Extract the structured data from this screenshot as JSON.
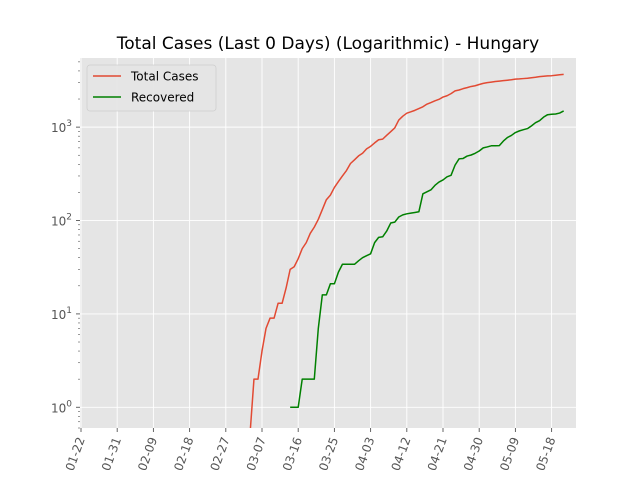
{
  "chart_data": {
    "type": "line",
    "title": "Total Cases (Last 0 Days) (Logarithmic) - Hungary",
    "xlabel": "",
    "ylabel": "",
    "yscale": "log",
    "ylim": [
      0.6,
      5500
    ],
    "x_tick_labels": [
      "01-22",
      "01-31",
      "02-09",
      "02-18",
      "02-27",
      "03-07",
      "03-16",
      "03-25",
      "04-03",
      "04-12",
      "04-21",
      "04-30",
      "05-09",
      "05-18"
    ],
    "y_ticks": [
      {
        "value": 1,
        "base": "10",
        "exp": "0"
      },
      {
        "value": 10,
        "base": "10",
        "exp": "1"
      },
      {
        "value": 100,
        "base": "10",
        "exp": "2"
      },
      {
        "value": 1000,
        "base": "10",
        "exp": "3"
      }
    ],
    "grid": true,
    "legend_position": "top-left",
    "series": [
      {
        "name": "Total Cases",
        "color": "#e24a33",
        "points": [
          [
            "03-04",
            0.5
          ],
          [
            "03-05",
            2
          ],
          [
            "03-06",
            2
          ],
          [
            "03-07",
            4
          ],
          [
            "03-08",
            7
          ],
          [
            "03-09",
            9
          ],
          [
            "03-10",
            9
          ],
          [
            "03-11",
            13
          ],
          [
            "03-12",
            13
          ],
          [
            "03-13",
            19
          ],
          [
            "03-14",
            30
          ],
          [
            "03-15",
            32
          ],
          [
            "03-16",
            39
          ],
          [
            "03-17",
            50
          ],
          [
            "03-18",
            58
          ],
          [
            "03-19",
            73
          ],
          [
            "03-20",
            85
          ],
          [
            "03-21",
            103
          ],
          [
            "03-22",
            131
          ],
          [
            "03-23",
            167
          ],
          [
            "03-24",
            187
          ],
          [
            "03-25",
            226
          ],
          [
            "03-26",
            261
          ],
          [
            "03-27",
            300
          ],
          [
            "03-28",
            343
          ],
          [
            "03-29",
            408
          ],
          [
            "03-30",
            447
          ],
          [
            "03-31",
            492
          ],
          [
            "04-01",
            525
          ],
          [
            "04-02",
            585
          ],
          [
            "04-03",
            623
          ],
          [
            "04-04",
            678
          ],
          [
            "04-05",
            733
          ],
          [
            "04-06",
            744
          ],
          [
            "04-07",
            817
          ],
          [
            "04-08",
            895
          ],
          [
            "04-09",
            980
          ],
          [
            "04-10",
            1190
          ],
          [
            "04-11",
            1310
          ],
          [
            "04-12",
            1410
          ],
          [
            "04-13",
            1458
          ],
          [
            "04-14",
            1512
          ],
          [
            "04-15",
            1579
          ],
          [
            "04-16",
            1652
          ],
          [
            "04-17",
            1763
          ],
          [
            "04-18",
            1834
          ],
          [
            "04-19",
            1916
          ],
          [
            "04-20",
            1984
          ],
          [
            "04-21",
            2098
          ],
          [
            "04-22",
            2168
          ],
          [
            "04-23",
            2284
          ],
          [
            "04-24",
            2443
          ],
          [
            "04-25",
            2500
          ],
          [
            "04-26",
            2583
          ],
          [
            "04-27",
            2649
          ],
          [
            "04-28",
            2727
          ],
          [
            "04-29",
            2775
          ],
          [
            "04-30",
            2863
          ],
          [
            "05-01",
            2942
          ],
          [
            "05-02",
            2998
          ],
          [
            "05-03",
            3035
          ],
          [
            "05-04",
            3078
          ],
          [
            "05-05",
            3111
          ],
          [
            "05-06",
            3150
          ],
          [
            "05-07",
            3178
          ],
          [
            "05-08",
            3213
          ],
          [
            "05-09",
            3263
          ],
          [
            "05-10",
            3284
          ],
          [
            "05-11",
            3313
          ],
          [
            "05-12",
            3341
          ],
          [
            "05-13",
            3380
          ],
          [
            "05-14",
            3417
          ],
          [
            "05-15",
            3473
          ],
          [
            "05-16",
            3509
          ],
          [
            "05-17",
            3535
          ],
          [
            "05-18",
            3556
          ],
          [
            "05-19",
            3598
          ],
          [
            "05-20",
            3636
          ],
          [
            "05-21",
            3678
          ]
        ]
      },
      {
        "name": "Recovered",
        "color": "#008000",
        "points": [
          [
            "03-14",
            1
          ],
          [
            "03-15",
            1
          ],
          [
            "03-16",
            1
          ],
          [
            "03-17",
            2
          ],
          [
            "03-18",
            2
          ],
          [
            "03-19",
            2
          ],
          [
            "03-20",
            2
          ],
          [
            "03-21",
            7
          ],
          [
            "03-22",
            16
          ],
          [
            "03-23",
            16
          ],
          [
            "03-24",
            21
          ],
          [
            "03-25",
            21
          ],
          [
            "03-26",
            28
          ],
          [
            "03-27",
            34
          ],
          [
            "03-28",
            34
          ],
          [
            "03-29",
            34
          ],
          [
            "03-30",
            34
          ],
          [
            "03-31",
            37
          ],
          [
            "04-01",
            40
          ],
          [
            "04-02",
            42
          ],
          [
            "04-03",
            44
          ],
          [
            "04-04",
            58
          ],
          [
            "04-05",
            66
          ],
          [
            "04-06",
            67
          ],
          [
            "04-07",
            77
          ],
          [
            "04-08",
            94
          ],
          [
            "04-09",
            96
          ],
          [
            "04-10",
            109
          ],
          [
            "04-11",
            115
          ],
          [
            "04-12",
            118
          ],
          [
            "04-13",
            120
          ],
          [
            "04-14",
            122
          ],
          [
            "04-15",
            124
          ],
          [
            "04-16",
            193
          ],
          [
            "04-17",
            203
          ],
          [
            "04-18",
            213
          ],
          [
            "04-19",
            238
          ],
          [
            "04-20",
            258
          ],
          [
            "04-21",
            272
          ],
          [
            "04-22",
            294
          ],
          [
            "04-23",
            305
          ],
          [
            "04-24",
            392
          ],
          [
            "04-25",
            458
          ],
          [
            "04-26",
            462
          ],
          [
            "04-27",
            490
          ],
          [
            "04-28",
            503
          ],
          [
            "04-29",
            525
          ],
          [
            "04-30",
            555
          ],
          [
            "05-01",
            600
          ],
          [
            "05-02",
            614
          ],
          [
            "05-03",
            631
          ],
          [
            "05-04",
            632
          ],
          [
            "05-05",
            634
          ],
          [
            "05-06",
            709
          ],
          [
            "05-07",
            774
          ],
          [
            "05-08",
            815
          ],
          [
            "05-09",
            876
          ],
          [
            "05-10",
            912
          ],
          [
            "05-11",
            939
          ],
          [
            "05-12",
            965
          ],
          [
            "05-13",
            1031
          ],
          [
            "05-14",
            1115
          ],
          [
            "05-15",
            1171
          ],
          [
            "05-16",
            1279
          ],
          [
            "05-17",
            1359
          ],
          [
            "05-18",
            1373
          ],
          [
            "05-19",
            1383
          ],
          [
            "05-20",
            1415
          ],
          [
            "05-21",
            1492
          ]
        ]
      }
    ]
  }
}
